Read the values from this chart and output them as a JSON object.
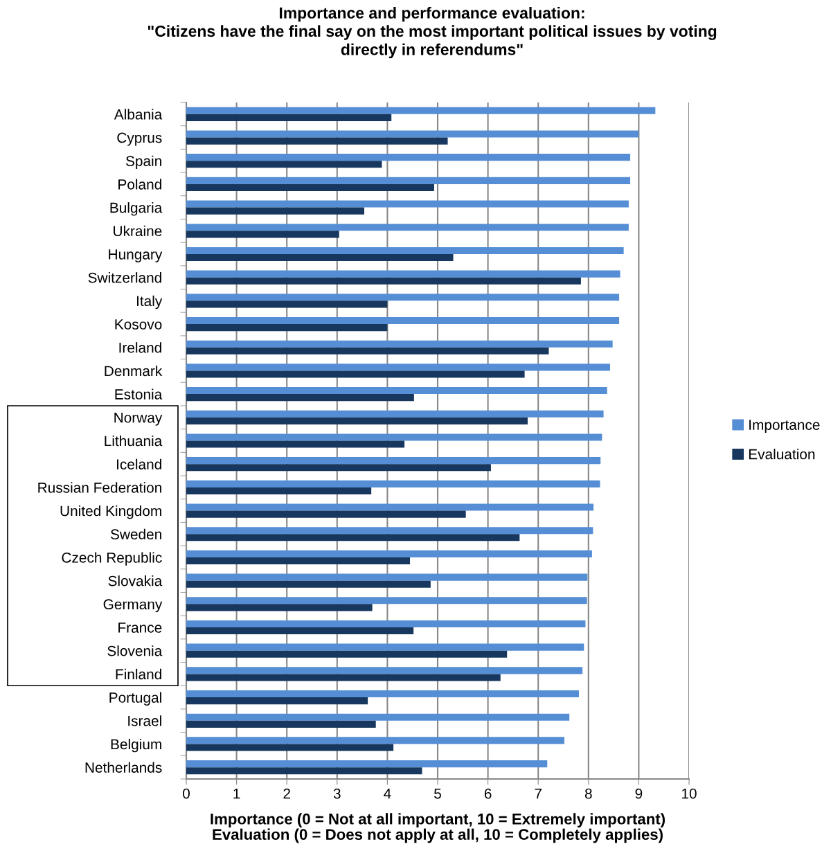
{
  "chart_data": {
    "type": "bar",
    "orientation": "horizontal",
    "title": "Importance and performance evaluation:\n\"Citizens have the final say on the most important political issues by voting\ndirectly in referendums\"",
    "xlabel": "Importance (0 = Not at all important, 10 = Extremely important)\nEvaluation (0 = Does not apply at all, 10 = Completely applies)",
    "categories": [
      "Albania",
      "Cyprus",
      "Spain",
      "Poland",
      "Bulgaria",
      "Ukraine",
      "Hungary",
      "Switzerland",
      "Italy",
      "Kosovo",
      "Ireland",
      "Denmark",
      "Estonia",
      "Norway",
      "Lithuania",
      "Iceland",
      "Russian Federation",
      "United Kingdom",
      "Sweden",
      "Czech Republic",
      "Slovakia",
      "Germany",
      "France",
      "Slovenia",
      "Finland",
      "Portugal",
      "Israel",
      "Belgium",
      "Netherlands"
    ],
    "series": [
      {
        "name": "Importance",
        "color": "#558ed5",
        "values": [
          9.33,
          9.0,
          8.83,
          8.83,
          8.8,
          8.8,
          8.7,
          8.63,
          8.61,
          8.61,
          8.48,
          8.43,
          8.37,
          8.3,
          8.27,
          8.24,
          8.23,
          8.1,
          8.09,
          8.07,
          7.98,
          7.97,
          7.94,
          7.91,
          7.88,
          7.81,
          7.62,
          7.52,
          7.18
        ]
      },
      {
        "name": "Evaluation",
        "color": "#17375e",
        "values": [
          4.08,
          5.2,
          3.89,
          4.93,
          3.54,
          3.04,
          5.31,
          7.85,
          4.0,
          4.0,
          7.21,
          6.73,
          4.53,
          6.79,
          4.34,
          6.06,
          3.68,
          5.56,
          6.63,
          4.45,
          4.86,
          3.7,
          4.52,
          6.38,
          6.25,
          3.61,
          3.77,
          4.12,
          4.69
        ]
      }
    ],
    "xlim": [
      0,
      10
    ],
    "xticks": [
      0,
      1,
      2,
      3,
      4,
      5,
      6,
      7,
      8,
      9,
      10
    ],
    "grid": "x",
    "legend": "right"
  }
}
